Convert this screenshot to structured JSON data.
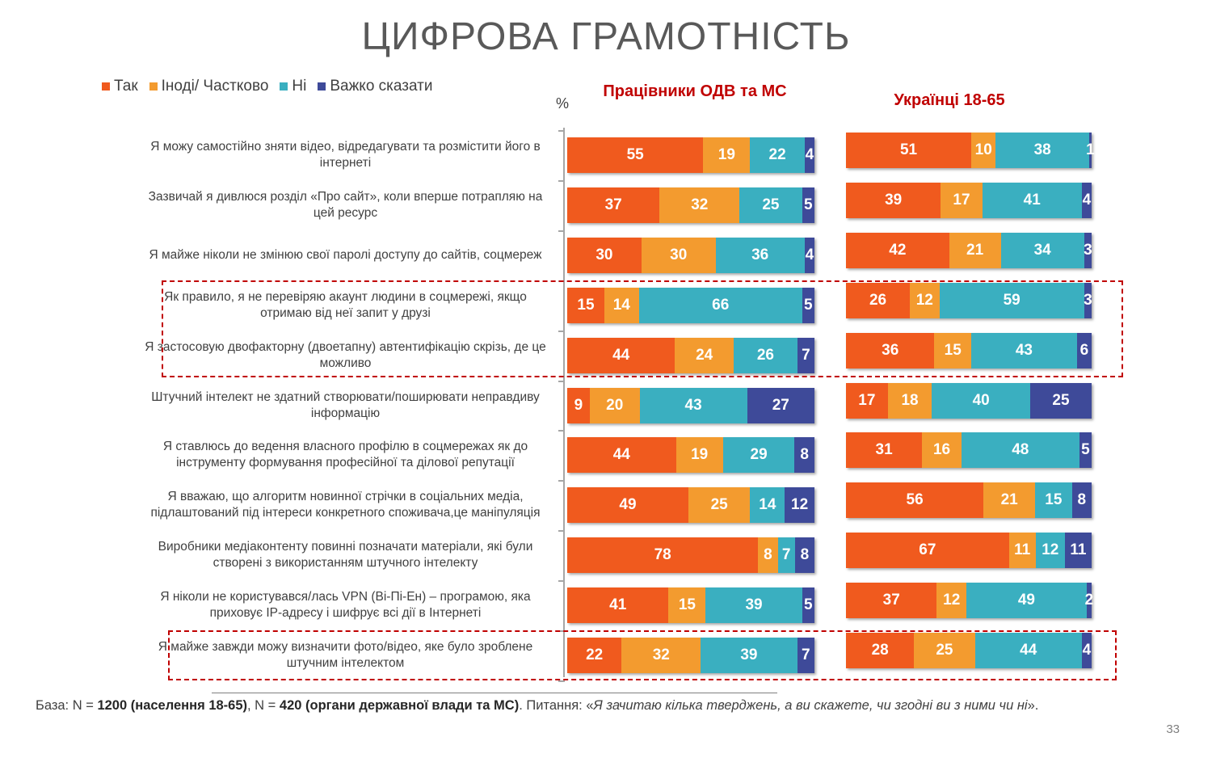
{
  "page": {
    "title": "ЦИФРОВА ГРАМОТНІСТЬ",
    "percent_sign": "%",
    "page_number": "33"
  },
  "colors": {
    "Так": "#f05a1e",
    "Іноді/ Частково": "#f39b2f",
    "Ні": "#3aafc0",
    "Важко сказати": "#3e4a99"
  },
  "legend": [
    {
      "label": "Так",
      "color": "#f05a1e"
    },
    {
      "label": "Іноді/ Частково",
      "color": "#f39b2f"
    },
    {
      "label": "Ні",
      "color": "#3aafc0"
    },
    {
      "label": "Важко сказати",
      "color": "#3e4a99"
    }
  ],
  "footer": {
    "base_label": "База: N = ",
    "base_pop": "1200 (населення 18-65)",
    "sep": ", N = ",
    "base_gov": "420 (органи державної влади та МС)",
    "question_label": ". Питання: «",
    "question_text": "Я зачитаю кілька тверджень, а ви скажете, чи згодні ви з ними чи ні",
    "question_end": "»."
  },
  "chart_data": [
    {
      "type": "bar",
      "orientation": "horizontal-stacked",
      "title": "Працівники ОДВ та МС",
      "series_names": [
        "Так",
        "Іноді/ Частково",
        "Ні",
        "Важко сказати"
      ],
      "categories": [
        "Я можу самостійно зняти відео, відредагувати та розмістити його в інтернеті",
        "Зазвичай я дивлюся розділ «Про сайт», коли вперше потрапляю на цей ресурс",
        "Я майже ніколи не змінюю свої паролі доступу до сайтів, соцмереж",
        "Як правило, я не перевіряю акаунт людини в соцмережі, якщо отримаю від неї запит у друзі",
        "Я застосовую двофакторну (двоетапну) автентифікацію скрізь, де це можливо",
        "Штучний інтелект не здатний створювати/поширювати неправдиву інформацію",
        "Я ставлюсь до ведення власного профілю в соцмережах як до інструменту формування професійної та ділової репутації",
        "Я вважаю, що алгоритм новинної стрічки в соціальних медіа, підлаштований під інтереси конкретного споживача,це маніпуляція",
        "Виробники медіаконтенту повинні позначати матеріали, які були створені з використанням штучного інтелекту",
        "Я ніколи не користувався/лась VPN (Ві-Пі-Ен) – програмою, яка приховує IP-адресу і шифрує всі дії в Інтернеті",
        "Я майже завжди можу визначити фото/відео, яке було зроблене штучним інтелектом"
      ],
      "values": [
        [
          55,
          19,
          22,
          4
        ],
        [
          37,
          32,
          25,
          5
        ],
        [
          30,
          30,
          36,
          4
        ],
        [
          15,
          14,
          66,
          5
        ],
        [
          44,
          24,
          26,
          7
        ],
        [
          9,
          20,
          43,
          27
        ],
        [
          44,
          19,
          29,
          8
        ],
        [
          49,
          25,
          14,
          12
        ],
        [
          78,
          8,
          7,
          8
        ],
        [
          41,
          15,
          39,
          5
        ],
        [
          22,
          32,
          39,
          7
        ]
      ]
    },
    {
      "type": "bar",
      "orientation": "horizontal-stacked",
      "title": "Українці 18-65",
      "series_names": [
        "Так",
        "Іноді/ Частково",
        "Ні",
        "Важко сказати"
      ],
      "values": [
        [
          51,
          10,
          38,
          1
        ],
        [
          39,
          17,
          41,
          4
        ],
        [
          42,
          21,
          34,
          3
        ],
        [
          26,
          12,
          59,
          3
        ],
        [
          36,
          15,
          43,
          6
        ],
        [
          17,
          18,
          40,
          25
        ],
        [
          31,
          16,
          48,
          5
        ],
        [
          56,
          21,
          15,
          8
        ],
        [
          67,
          11,
          12,
          11
        ],
        [
          37,
          12,
          49,
          2
        ],
        [
          28,
          25,
          44,
          4
        ]
      ]
    }
  ]
}
